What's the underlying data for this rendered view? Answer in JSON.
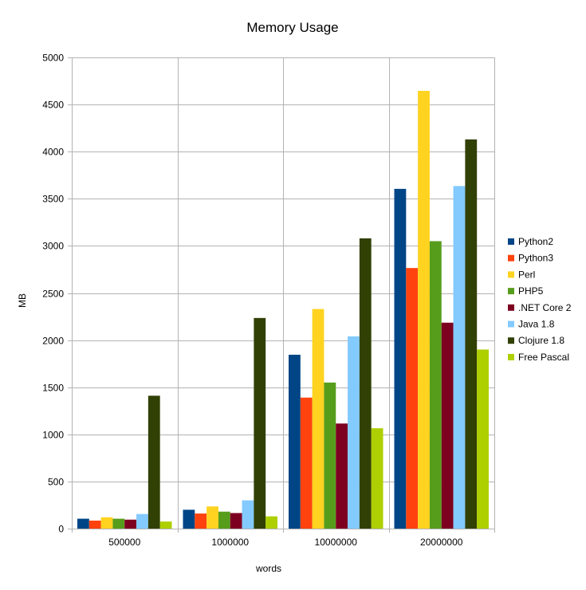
{
  "chart_data": {
    "type": "bar",
    "title": "Memory Usage",
    "xlabel": "words",
    "ylabel": "MB",
    "ylim": [
      0,
      5000
    ],
    "ytick_step": 500,
    "grid": true,
    "legend_position": "right",
    "categories": [
      "500000",
      "1000000",
      "10000000",
      "20000000"
    ],
    "series": [
      {
        "name": "Python2",
        "color": "#004586",
        "values": [
          105,
          200,
          1845,
          3605
        ]
      },
      {
        "name": "Python3",
        "color": "#ff420e",
        "values": [
          85,
          160,
          1390,
          2765
        ]
      },
      {
        "name": "Perl",
        "color": "#ffd320",
        "values": [
          120,
          235,
          2330,
          4645
        ]
      },
      {
        "name": "PHP5",
        "color": "#579d1c",
        "values": [
          105,
          180,
          1550,
          3050
        ]
      },
      {
        "name": ".NET Core 2",
        "color": "#7e0021",
        "values": [
          95,
          165,
          1115,
          2185
        ]
      },
      {
        "name": "Java 1.8",
        "color": "#83caff",
        "values": [
          155,
          300,
          2040,
          3635
        ]
      },
      {
        "name": "Clojure 1.8",
        "color": "#314004",
        "values": [
          1410,
          2235,
          3080,
          4130
        ]
      },
      {
        "name": "Free Pascal",
        "color": "#aecf00",
        "values": [
          75,
          130,
          1065,
          1900
        ]
      }
    ]
  }
}
